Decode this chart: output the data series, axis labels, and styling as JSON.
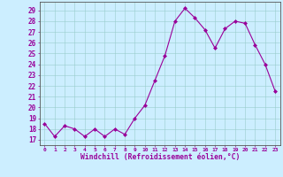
{
  "x": [
    0,
    1,
    2,
    3,
    4,
    5,
    6,
    7,
    8,
    9,
    10,
    11,
    12,
    13,
    14,
    15,
    16,
    17,
    18,
    19,
    20,
    21,
    22,
    23
  ],
  "y": [
    18.5,
    17.3,
    18.3,
    18.0,
    17.3,
    18.0,
    17.3,
    18.0,
    17.5,
    19.0,
    20.2,
    22.5,
    24.8,
    28.0,
    29.2,
    28.3,
    27.2,
    25.5,
    27.3,
    28.0,
    27.8,
    25.8,
    24.0,
    21.5
  ],
  "line_color": "#990099",
  "marker": "D",
  "marker_size": 2.0,
  "bg_color": "#cceeff",
  "grid_color": "#99cccc",
  "xlabel": "Windchill (Refroidissement éolien,°C)",
  "xlabel_color": "#990099",
  "tick_color": "#990099",
  "ylabel_ticks": [
    17,
    18,
    19,
    20,
    21,
    22,
    23,
    24,
    25,
    26,
    27,
    28,
    29
  ],
  "xlim": [
    -0.5,
    23.5
  ],
  "ylim": [
    16.5,
    29.8
  ],
  "spine_color": "#555555"
}
